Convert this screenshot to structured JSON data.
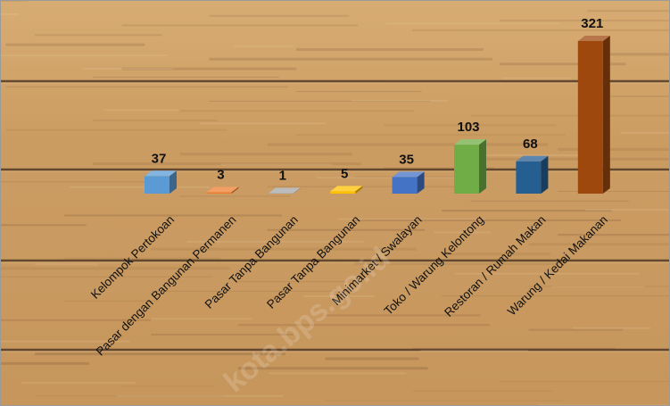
{
  "chart_data": {
    "type": "bar",
    "title": "",
    "xlabel": "",
    "ylabel": "",
    "categories": [
      "Kelompok Pertokoan",
      "Pasar dengan Bangunan Permanen",
      "Pasar Tanpa Bangunan",
      "Pasar Tanpa Bangunan",
      "Minimarket / Swalayan",
      "Toko / Warung Kelontong",
      "Restoran / Rumah Makan",
      "Warung / Kedai Makanan"
    ],
    "values": [
      37,
      3,
      1,
      5,
      35,
      103,
      68,
      321
    ],
    "colors": [
      "#5b9bd5",
      "#ed7d31",
      "#a5a5a5",
      "#ffc000",
      "#4472c4",
      "#70ad47",
      "#255e91",
      "#9e480e"
    ],
    "ylim": [
      0,
      321
    ],
    "grid": false,
    "legend": "none"
  },
  "watermark": "kota.bps.go.id"
}
